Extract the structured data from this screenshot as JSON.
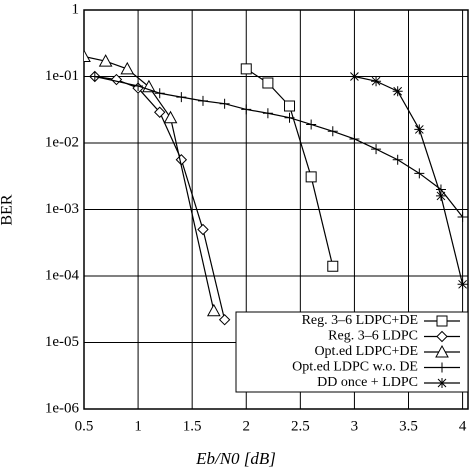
{
  "chart_data": {
    "type": "line",
    "xlabel": "Eb/N0 [dB]",
    "ylabel": "BER",
    "xlim": [
      0.5,
      4.05
    ],
    "ylim": [
      1e-06,
      1
    ],
    "log_y": true,
    "grid": true,
    "legend": "lower right",
    "xticks": [
      0.5,
      1,
      1.5,
      2,
      2.5,
      3,
      3.5,
      4
    ],
    "yticks": [
      {
        "value": 1e-06,
        "label": "1e-06"
      },
      {
        "value": 1e-05,
        "label": "1e-05"
      },
      {
        "value": 0.0001,
        "label": "1e-04"
      },
      {
        "value": 0.001,
        "label": "1e-03"
      },
      {
        "value": 0.01,
        "label": "1e-02"
      },
      {
        "value": 0.1,
        "label": "1e-01"
      },
      1
    ],
    "series": [
      {
        "name": "Reg. 3–6 LDPC+DE",
        "marker": "square",
        "color": "#000000",
        "x": [
          2.0,
          2.2,
          2.4,
          2.6,
          2.8
        ],
        "values": [
          0.13,
          0.08,
          0.036,
          0.0031,
          0.00014
        ]
      },
      {
        "name": "Reg. 3–6 LDPC",
        "marker": "diamond",
        "color": "#000000",
        "x": [
          0.6,
          0.8,
          1.0,
          1.2,
          1.4,
          1.6,
          1.8
        ],
        "values": [
          0.1,
          0.09,
          0.067,
          0.029,
          0.0056,
          0.0005,
          2.2e-05
        ]
      },
      {
        "name": "Opt.ed LDPC+DE",
        "marker": "triangle",
        "color": "#000000",
        "x": [
          0.5,
          0.7,
          0.9,
          1.1,
          1.3,
          1.7
        ],
        "values": [
          0.2,
          0.17,
          0.13,
          0.07,
          0.024,
          3e-05
        ]
      },
      {
        "name": "Opt.ed LDPC w.o. DE",
        "marker": "plus",
        "color": "#000000",
        "x": [
          0.6,
          1.0,
          1.2,
          1.4,
          1.6,
          1.8,
          2.0,
          2.2,
          2.4,
          2.6,
          2.8,
          3.0,
          3.2,
          3.4,
          3.6,
          3.8,
          4.0
        ],
        "values": [
          0.1,
          0.072,
          0.056,
          0.049,
          0.043,
          0.039,
          0.032,
          0.028,
          0.024,
          0.019,
          0.015,
          0.0115,
          0.0081,
          0.0056,
          0.0035,
          0.002,
          0.00077
        ]
      },
      {
        "name": "DD once + LDPC",
        "marker": "star",
        "color": "#000000",
        "x": [
          3.0,
          3.2,
          3.4,
          3.6,
          3.8,
          4.0
        ],
        "values": [
          0.1,
          0.085,
          0.06,
          0.016,
          0.0016,
          7.5e-05
        ]
      }
    ]
  }
}
